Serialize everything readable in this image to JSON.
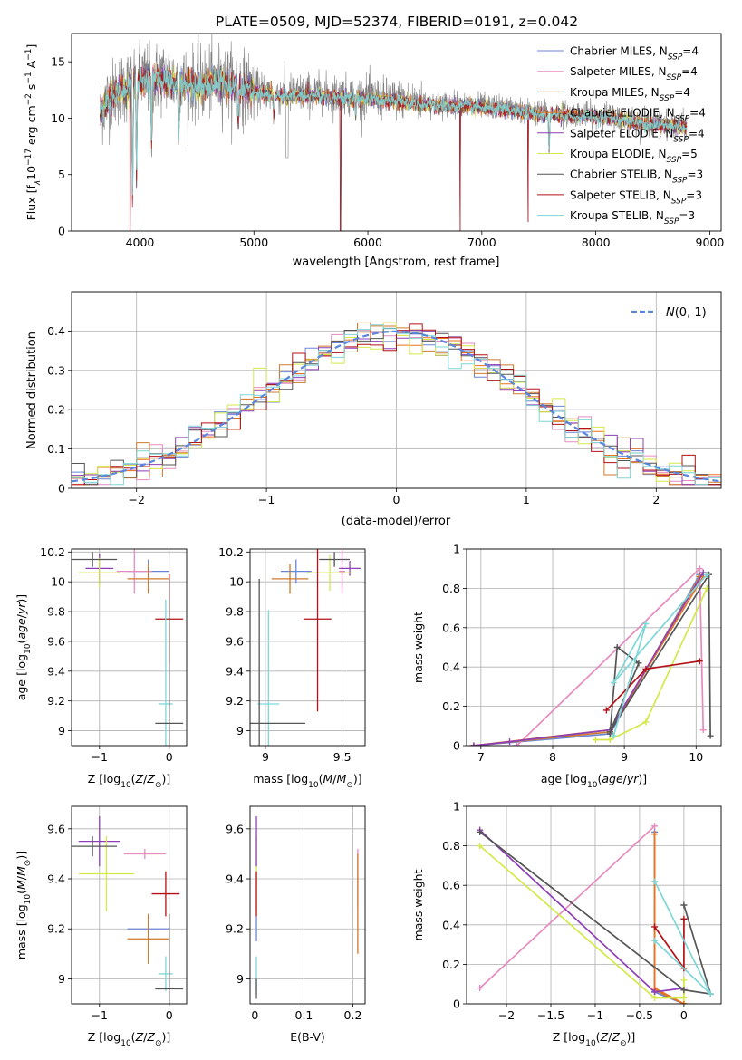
{
  "figure": {
    "title": "PLATE=0509, MJD=52374, FIBERID=0191, z=0.042"
  },
  "colors": {
    "Chabrier MILES": "#6b86d6",
    "Salpeter MILES": "#e68bc0",
    "Kroupa MILES": "#cf7a2e",
    "Chabrier ELODIE": "#e8731f",
    "Salpeter ELODIE": "#8e3fb7",
    "Kroupa ELODIE": "#d4e84a",
    "Chabrier STELIB": "#555555",
    "Salpeter STELIB": "#b31217",
    "Kroupa STELIB": "#7fd6d6",
    "data": "#808080",
    "normal": "#5b86dd"
  },
  "chart_data": [
    {
      "id": "spectrum",
      "type": "line",
      "xlabel": "wavelength [Angstrom, rest frame]",
      "ylabel": "Flux [f_λ 10^-17 erg cm^-2 s^-1 A^-1]",
      "xlim": [
        3400,
        9100
      ],
      "ylim": [
        0,
        17.5
      ],
      "xticks": [
        4000,
        5000,
        6000,
        7000,
        8000,
        9000
      ],
      "yticks": [
        0,
        5,
        10,
        15
      ],
      "legend": "top-right",
      "legend_entries": [
        {
          "name": "Chabrier MILES",
          "nssp": "4"
        },
        {
          "name": "Salpeter MILES",
          "nssp": "4"
        },
        {
          "name": "Kroupa MILES",
          "nssp": "4"
        },
        {
          "name": "Chabrier ELODIE",
          "nssp": "4"
        },
        {
          "name": "Salpeter ELODIE",
          "nssp": "4"
        },
        {
          "name": "Kroupa ELODIE",
          "nssp": "5"
        },
        {
          "name": "Chabrier STELIB",
          "nssp": "3"
        },
        {
          "name": "Salpeter STELIB",
          "nssp": "3"
        },
        {
          "name": "Kroupa STELIB",
          "nssp": "3"
        }
      ],
      "continuum": {
        "x": [
          3650,
          3700,
          3800,
          3900,
          4000,
          4100,
          4200,
          4300,
          4500,
          4700,
          4900,
          5100,
          5300,
          5500,
          5800,
          6000,
          6300,
          6600,
          6900,
          7200,
          7500,
          7800,
          8100,
          8400,
          8800
        ],
        "y": [
          10.5,
          11.5,
          12.5,
          13.0,
          13.6,
          13.4,
          13.7,
          13.3,
          13.0,
          13.4,
          12.8,
          12.3,
          12.1,
          12.2,
          12.0,
          11.9,
          11.6,
          11.3,
          11.2,
          10.9,
          10.5,
          10.4,
          10.3,
          9.7,
          9.4
        ]
      },
      "absorption_features": [
        {
          "x": 3935,
          "y": 2.0
        },
        {
          "x": 3970,
          "y": 4.5
        },
        {
          "x": 4102,
          "y": 7.5
        },
        {
          "x": 4340,
          "y": 7.8
        },
        {
          "x": 4861,
          "y": 9.0
        },
        {
          "x": 5175,
          "y": 10.0
        },
        {
          "x": 5893,
          "y": 10.0
        },
        {
          "x": 7590,
          "y": 7.0
        }
      ],
      "glitches": [
        {
          "x": 3915,
          "y": 0
        },
        {
          "x": 5760,
          "y": 0
        },
        {
          "x": 6810,
          "y": 0
        },
        {
          "x": 7405,
          "y": 0.8
        }
      ],
      "wavelength_range_models": [
        3650,
        8800
      ]
    },
    {
      "id": "residuals",
      "type": "bar",
      "xlabel": "(data-model)/error",
      "ylabel": "Normed distribution",
      "xlim": [
        -2.5,
        2.5
      ],
      "ylim": [
        0,
        0.5
      ],
      "xticks": [
        -2,
        -1,
        0,
        1,
        2
      ],
      "yticks": [
        0.0,
        0.1,
        0.2,
        0.3,
        0.4
      ],
      "grid": true,
      "legend": "top-right",
      "normal_label": "N(0,1)",
      "bin_width": 0.1
    },
    {
      "id": "age_vs_Z",
      "type": "scatter",
      "xlabel": "Z [log10(Z/Z⊙)]",
      "ylabel": "age [log10(age/yr)]",
      "xlim": [
        -1.4,
        0.25
      ],
      "ylim": [
        8.9,
        10.22
      ],
      "xticks": [
        -1,
        0
      ],
      "yticks": [
        9.0,
        9.2,
        9.4,
        9.6,
        9.8,
        10.0,
        10.2
      ],
      "grid": true,
      "points": [
        {
          "model": "Chabrier MILES",
          "x": -0.3,
          "y": 10.07,
          "xerr": 0.3,
          "yerr": 0.08
        },
        {
          "model": "Salpeter MILES",
          "x": -0.5,
          "y": 10.07,
          "xerr": 0.25,
          "yerr": 0.15
        },
        {
          "model": "Kroupa MILES",
          "x": -0.3,
          "y": 10.02,
          "xerr": 0.3,
          "yerr": 0.1
        },
        {
          "model": "Salpeter ELODIE",
          "x": -1.0,
          "y": 10.09,
          "xerr": 0.2,
          "yerr": 0.1
        },
        {
          "model": "Kroupa ELODIE",
          "x": -1.0,
          "y": 10.06,
          "xerr": 0.3,
          "yerr": 0.1
        },
        {
          "model": "Chabrier STELIB",
          "x": -1.1,
          "y": 10.15,
          "xerr": 0.35,
          "yerr": 0.05
        },
        {
          "model": "Salpeter STELIB",
          "x": 0.0,
          "y": 9.75,
          "xerr": 0.2,
          "yerr": 0.3
        },
        {
          "model": "Kroupa STELIB",
          "x": -0.05,
          "y": 9.18,
          "xerr": 0.1,
          "yerr": 0.7
        },
        {
          "model": "Chabrier STELIB",
          "x": 0.0,
          "y": 9.05,
          "xerr": 0.2,
          "yerr": 0.97
        }
      ]
    },
    {
      "id": "age_vs_mass",
      "type": "scatter",
      "xlabel": "mass [log10(M/M⊙)]",
      "ylabel": "",
      "xlim": [
        8.9,
        9.65
      ],
      "ylim": [
        8.9,
        10.22
      ],
      "xticks": [
        9.0,
        9.5
      ],
      "yticks": [
        9.0,
        9.2,
        9.4,
        9.6,
        9.8,
        10.0,
        10.2
      ],
      "grid": true,
      "points": [
        {
          "model": "Chabrier MILES",
          "x": 9.2,
          "y": 10.07,
          "xerr": 0.1,
          "yerr": 0.08
        },
        {
          "model": "Salpeter MILES",
          "x": 9.5,
          "y": 10.07,
          "xerr": 0.02,
          "yerr": 0.15
        },
        {
          "model": "Kroupa MILES",
          "x": 9.16,
          "y": 10.02,
          "xerr": 0.12,
          "yerr": 0.1
        },
        {
          "model": "Salpeter ELODIE",
          "x": 9.55,
          "y": 10.09,
          "xerr": 0.07,
          "yerr": 0.05
        },
        {
          "model": "Kroupa ELODIE",
          "x": 9.42,
          "y": 10.06,
          "xerr": 0.15,
          "yerr": 0.12
        },
        {
          "model": "Chabrier STELIB",
          "x": 9.45,
          "y": 10.15,
          "xerr": 0.1,
          "yerr": 0.05
        },
        {
          "model": "Salpeter STELIB",
          "x": 9.34,
          "y": 9.75,
          "xerr": 0.09,
          "yerr": 0.62
        },
        {
          "model": "Kroupa STELIB",
          "x": 9.02,
          "y": 9.18,
          "xerr": 0.07,
          "yerr": 0.63
        },
        {
          "model": "Chabrier STELIB",
          "x": 8.96,
          "y": 9.05,
          "xerr": 0.3,
          "yerr": 0.97
        }
      ]
    },
    {
      "id": "weight_vs_age",
      "type": "line",
      "xlabel": "age [log10(age/yr)]",
      "ylabel": "mass weight",
      "xlim": [
        6.8,
        10.35
      ],
      "ylim": [
        0,
        1.0
      ],
      "xticks": [
        7,
        8,
        9,
        10
      ],
      "yticks": [
        0.0,
        0.2,
        0.4,
        0.6,
        0.8,
        1.0
      ],
      "grid": true,
      "series": [
        {
          "model": "Chabrier MILES",
          "x": [
            6.9,
            8.8,
            10.05
          ],
          "y": [
            0.0,
            0.06,
            0.87
          ]
        },
        {
          "model": "Salpeter MILES",
          "x": [
            7.5,
            10.05,
            10.1
          ],
          "y": [
            0.0,
            0.9,
            0.08
          ]
        },
        {
          "model": "Kroupa MILES",
          "x": [
            6.9,
            8.8,
            10.05
          ],
          "y": [
            0.0,
            0.07,
            0.86
          ]
        },
        {
          "model": "Chabrier ELODIE",
          "x": [
            6.9,
            8.8,
            10.1
          ],
          "y": [
            0.0,
            0.08,
            0.86
          ]
        },
        {
          "model": "Salpeter ELODIE",
          "x": [
            6.9,
            7.4,
            8.8,
            10.1
          ],
          "y": [
            0.0,
            0.02,
            0.08,
            0.88
          ]
        },
        {
          "model": "Kroupa ELODIE",
          "x": [
            8.6,
            8.8,
            9.3,
            10.15,
            10.15
          ],
          "y": [
            0.03,
            0.03,
            0.12,
            0.8,
            0.8
          ]
        },
        {
          "model": "Chabrier STELIB",
          "x": [
            8.8,
            8.9,
            9.2,
            8.8,
            10.18,
            10.2
          ],
          "y": [
            0.06,
            0.5,
            0.42,
            0.07,
            0.87,
            0.05
          ]
        },
        {
          "model": "Salpeter STELIB",
          "x": [
            8.75,
            9.3,
            10.05
          ],
          "y": [
            0.18,
            0.39,
            0.43
          ]
        },
        {
          "model": "Kroupa STELIB",
          "x": [
            8.85,
            9.3,
            8.85,
            10.15
          ],
          "y": [
            0.05,
            0.62,
            0.32,
            0.87
          ]
        }
      ]
    },
    {
      "id": "mass_vs_Z",
      "type": "scatter",
      "xlabel": "Z [log10(Z/Z⊙)]",
      "ylabel": "mass [log10(M/M⊙)]",
      "xlim": [
        -1.4,
        0.25
      ],
      "ylim": [
        8.9,
        9.69
      ],
      "xticks": [
        -1,
        0
      ],
      "yticks": [
        9.0,
        9.2,
        9.4,
        9.6
      ],
      "grid": true,
      "points": [
        {
          "model": "Chabrier MILES",
          "x": -0.3,
          "y": 9.2,
          "xerr": 0.3,
          "yerr": 0.05
        },
        {
          "model": "Salpeter MILES",
          "x": -0.35,
          "y": 9.5,
          "xerr": 0.3,
          "yerr": 0.02
        },
        {
          "model": "Kroupa MILES",
          "x": -0.3,
          "y": 9.16,
          "xerr": 0.3,
          "yerr": 0.1
        },
        {
          "model": "Salpeter ELODIE",
          "x": -1.0,
          "y": 9.55,
          "xerr": 0.3,
          "yerr": 0.1
        },
        {
          "model": "Kroupa ELODIE",
          "x": -0.9,
          "y": 9.42,
          "xerr": 0.4,
          "yerr": 0.15
        },
        {
          "model": "Chabrier STELIB",
          "x": -1.1,
          "y": 9.53,
          "xerr": 0.35,
          "yerr": 0.04
        },
        {
          "model": "Salpeter STELIB",
          "x": -0.05,
          "y": 9.34,
          "xerr": 0.2,
          "yerr": 0.09
        },
        {
          "model": "Kroupa STELIB",
          "x": -0.05,
          "y": 9.02,
          "xerr": 0.1,
          "yerr": 0.07
        },
        {
          "model": "Chabrier STELIB",
          "x": 0.0,
          "y": 8.96,
          "xerr": 0.2,
          "yerr": 0.3
        }
      ]
    },
    {
      "id": "mass_vs_ebv",
      "type": "scatter",
      "xlabel": "E(B-V)",
      "ylabel": "",
      "xlim": [
        -0.01,
        0.225
      ],
      "ylim": [
        8.9,
        9.69
      ],
      "xticks": [
        0.0,
        0.1,
        0.2
      ],
      "yticks": [
        9.0,
        9.2,
        9.4,
        9.6
      ],
      "grid": true,
      "points": [
        {
          "model": "Kroupa ELODIE",
          "x": 0.003,
          "y": 9.42,
          "xerr": 0.0,
          "yerr": 0.15
        },
        {
          "model": "Salpeter ELODIE",
          "x": 0.003,
          "y": 9.55,
          "xerr": 0.0,
          "yerr": 0.1
        },
        {
          "model": "Salpeter STELIB",
          "x": 0.003,
          "y": 9.34,
          "xerr": 0.0,
          "yerr": 0.09
        },
        {
          "model": "Chabrier MILES",
          "x": 0.003,
          "y": 9.2,
          "xerr": 0.0,
          "yerr": 0.05
        },
        {
          "model": "Kroupa STELIB",
          "x": 0.003,
          "y": 9.02,
          "xerr": 0.0,
          "yerr": 0.07
        },
        {
          "model": "Chabrier STELIB",
          "x": 0.003,
          "y": 8.96,
          "xerr": 0.0,
          "yerr": 0.04
        },
        {
          "model": "Salpeter MILES",
          "x": 0.21,
          "y": 9.4,
          "xerr": 0.0,
          "yerr": 0.12
        },
        {
          "model": "Kroupa MILES",
          "x": 0.21,
          "y": 9.3,
          "xerr": 0.0,
          "yerr": 0.2
        }
      ]
    },
    {
      "id": "weight_vs_Z",
      "type": "line",
      "xlabel": "Z [log10(Z/Z⊙)]",
      "ylabel": "mass weight",
      "xlim": [
        -2.45,
        0.42
      ],
      "ylim": [
        0,
        1.0
      ],
      "xticks": [
        -2.0,
        -1.5,
        -1.0,
        -0.5,
        0.0
      ],
      "yticks": [
        0.0,
        0.2,
        0.4,
        0.6,
        0.8,
        1.0
      ],
      "grid": true,
      "series": [
        {
          "model": "Chabrier MILES",
          "x": [
            -0.33,
            -0.33,
            0.0
          ],
          "y": [
            0.87,
            0.06,
            0.0
          ]
        },
        {
          "model": "Salpeter MILES",
          "x": [
            -2.3,
            -0.33
          ],
          "y": [
            0.08,
            0.9
          ]
        },
        {
          "model": "Kroupa MILES",
          "x": [
            -0.33,
            -0.33,
            0.0
          ],
          "y": [
            0.86,
            0.07,
            0.0
          ]
        },
        {
          "model": "Chabrier ELODIE",
          "x": [
            -0.33,
            -0.33,
            0.0
          ],
          "y": [
            0.86,
            0.08,
            0.0
          ]
        },
        {
          "model": "Salpeter ELODIE",
          "x": [
            -2.3,
            -0.33,
            0.0
          ],
          "y": [
            0.88,
            0.06,
            0.08
          ]
        },
        {
          "model": "Kroupa ELODIE",
          "x": [
            -2.3,
            -0.33,
            0.0,
            0.0
          ],
          "y": [
            0.8,
            0.03,
            0.03,
            0.12
          ]
        },
        {
          "model": "Chabrier STELIB",
          "x": [
            -2.3,
            0.0,
            0.3,
            0.0
          ],
          "y": [
            0.87,
            0.07,
            0.05,
            0.5
          ]
        },
        {
          "model": "Salpeter STELIB",
          "x": [
            -0.33,
            0.0,
            0.0
          ],
          "y": [
            0.39,
            0.18,
            0.43
          ]
        },
        {
          "model": "Kroupa STELIB",
          "x": [
            -0.33,
            0.3,
            -0.33
          ],
          "y": [
            0.62,
            0.05,
            0.32
          ]
        }
      ]
    }
  ]
}
